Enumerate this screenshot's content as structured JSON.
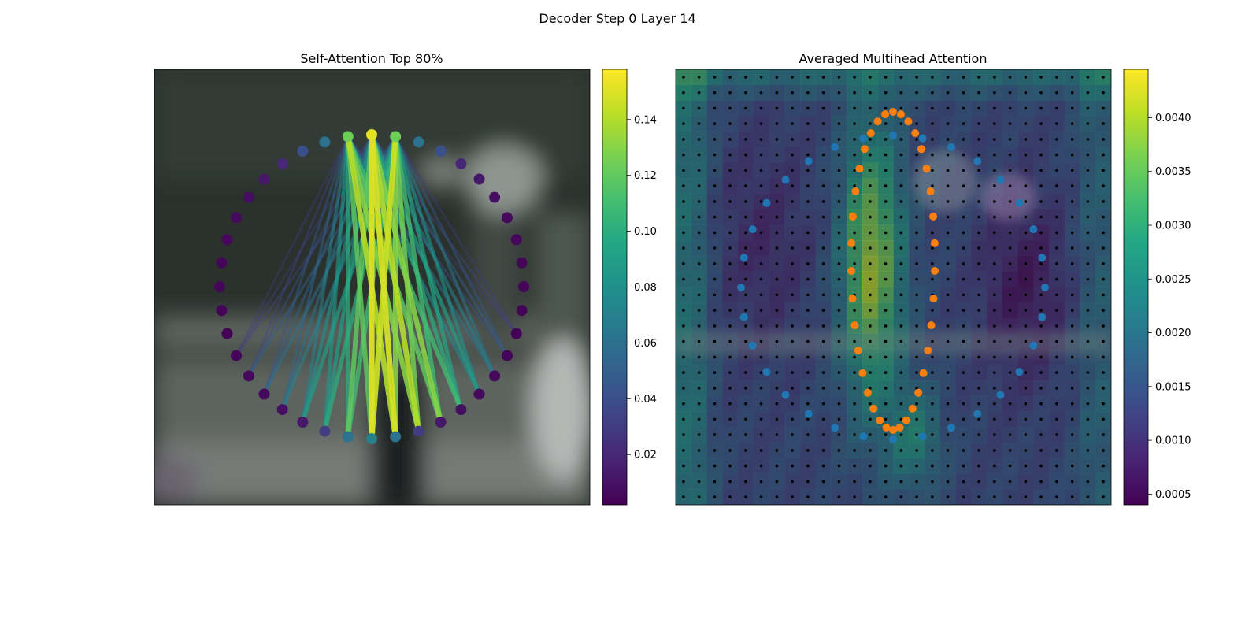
{
  "figure": {
    "suptitle": "Decoder Step 0 Layer 14"
  },
  "chart_data": [
    {
      "type": "network",
      "title": "Self-Attention Top 80%",
      "colormap": "viridis",
      "colorbar": {
        "range": [
          0.002,
          0.158
        ],
        "ticks": [
          0.02,
          0.04,
          0.06,
          0.08,
          0.1,
          0.12,
          0.14
        ],
        "tick_labels": [
          "0.02",
          "0.04",
          "0.06",
          "0.08",
          "0.10",
          "0.12",
          "0.14"
        ]
      },
      "ring": {
        "node_count": 40,
        "node_values": [
          0.152,
          0.124,
          0.06,
          0.04,
          0.02,
          0.012,
          0.008,
          0.006,
          0.005,
          0.004,
          0.004,
          0.003,
          0.003,
          0.004,
          0.005,
          0.006,
          0.008,
          0.012,
          0.03,
          0.06,
          0.07,
          0.06,
          0.03,
          0.012,
          0.008,
          0.006,
          0.005,
          0.004,
          0.003,
          0.003,
          0.004,
          0.004,
          0.005,
          0.006,
          0.008,
          0.012,
          0.02,
          0.04,
          0.06,
          0.124
        ],
        "source_nodes": [
          0,
          1,
          39
        ],
        "targets": [
          {
            "node": 20,
            "weights": [
              0.15,
              0.145,
              0.12
            ]
          },
          {
            "node": 19,
            "weights": [
              0.148,
              0.13,
              0.14
            ]
          },
          {
            "node": 21,
            "weights": [
              0.12,
              0.11,
              0.1
            ]
          },
          {
            "node": 18,
            "weights": [
              0.14,
              0.125,
              0.13
            ]
          },
          {
            "node": 22,
            "weights": [
              0.09,
              0.1,
              0.085
            ]
          },
          {
            "node": 17,
            "weights": [
              0.13,
              0.11,
              0.12
            ]
          },
          {
            "node": 23,
            "weights": [
              0.08,
              0.09,
              0.07
            ]
          },
          {
            "node": 16,
            "weights": [
              0.1,
              0.095,
              0.11
            ]
          },
          {
            "node": 24,
            "weights": [
              0.06,
              0.07,
              0.055
            ]
          },
          {
            "node": 15,
            "weights": [
              0.09,
              0.08,
              0.075
            ]
          },
          {
            "node": 25,
            "weights": [
              0.05,
              0.06,
              0.045
            ]
          },
          {
            "node": 14,
            "weights": [
              0.07,
              0.065,
              0.06
            ]
          },
          {
            "node": 26,
            "weights": [
              0.04,
              0.05,
              0.035
            ]
          },
          {
            "node": 13,
            "weights": [
              0.05,
              0.045,
              0.04
            ]
          },
          {
            "node": 27,
            "weights": [
              0.03,
              0.035,
              0.03
            ]
          },
          {
            "node": 12,
            "weights": [
              0.035,
              0.03,
              0.03
            ]
          }
        ]
      }
    },
    {
      "type": "heatmap",
      "title": "Averaged Multihead Attention",
      "colormap": "viridis",
      "grid_size": 28,
      "colorbar": {
        "range": [
          0.0004,
          0.00445
        ],
        "ticks": [
          0.0005,
          0.001,
          0.0015,
          0.002,
          0.0025,
          0.003,
          0.0035,
          0.004
        ],
        "tick_labels": [
          "0.0005",
          "0.0010",
          "0.0015",
          "0.0020",
          "0.0025",
          "0.0030",
          "0.0035",
          "0.0040"
        ]
      },
      "series": [
        {
          "marker_color": "#1f77b4",
          "shape": "outer-ring",
          "points": 32
        },
        {
          "marker_color": "#ff7f0e",
          "shape": "inner-contour",
          "points": 36
        }
      ]
    }
  ]
}
